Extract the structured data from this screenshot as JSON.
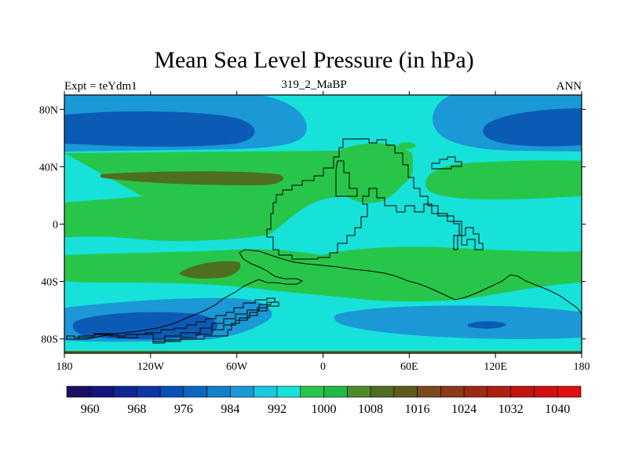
{
  "title": "Mean Sea Level Pressure (in hPa)",
  "subtitle_left": "Expt = teYdm1",
  "subtitle_center": "319_2_MaBP",
  "subtitle_right": "ANN",
  "colors": {
    "deep_blue": "#0b5bb5",
    "mid_blue": "#1b98d6",
    "light_cyan": "#17e2da",
    "green": "#27c64a",
    "olive": "#4e6e21",
    "coast": "#000000"
  },
  "chart_data": {
    "type": "heatmap",
    "title": "Mean Sea Level Pressure (in hPa)",
    "variable": "Mean Sea Level Pressure",
    "units": "hPa",
    "x_range": [
      -180,
      180
    ],
    "y_range": [
      -90,
      90
    ],
    "x_ticks": [
      {
        "value": -180,
        "label": "180"
      },
      {
        "value": -120,
        "label": "120W"
      },
      {
        "value": -60,
        "label": "60W"
      },
      {
        "value": 0,
        "label": "0"
      },
      {
        "value": 60,
        "label": "60E"
      },
      {
        "value": 120,
        "label": "120E"
      },
      {
        "value": 180,
        "label": "180"
      }
    ],
    "y_ticks": [
      {
        "value": 80,
        "label": "80N"
      },
      {
        "value": 40,
        "label": "40N"
      },
      {
        "value": 0,
        "label": "0"
      },
      {
        "value": -40,
        "label": "40S"
      },
      {
        "value": -80,
        "label": "80S"
      }
    ],
    "colorbar": {
      "min": 956,
      "step": 4,
      "colors": [
        "#1a0e66",
        "#14157a",
        "#0f2591",
        "#0c36a6",
        "#0b4fb3",
        "#0d66bf",
        "#1280c9",
        "#1b98d6",
        "#17c8e0",
        "#17e2da",
        "#27c64a",
        "#22b844",
        "#4e8a2a",
        "#4e6e21",
        "#5e5a1c",
        "#7a4a1a",
        "#8a3a18",
        "#9a2a14",
        "#ad2012",
        "#c0150e",
        "#d01010",
        "#e01010"
      ],
      "labels": [
        {
          "value": 960,
          "label": "960"
        },
        {
          "value": 968,
          "label": "968"
        },
        {
          "value": 976,
          "label": "976"
        },
        {
          "value": 984,
          "label": "984"
        },
        {
          "value": 992,
          "label": "992"
        },
        {
          "value": 1000,
          "label": "1000"
        },
        {
          "value": 1008,
          "label": "1008"
        },
        {
          "value": 1016,
          "label": "1016"
        },
        {
          "value": 1024,
          "label": "1024"
        },
        {
          "value": 1032,
          "label": "1032"
        },
        {
          "value": 1040,
          "label": "1040"
        }
      ]
    }
  }
}
